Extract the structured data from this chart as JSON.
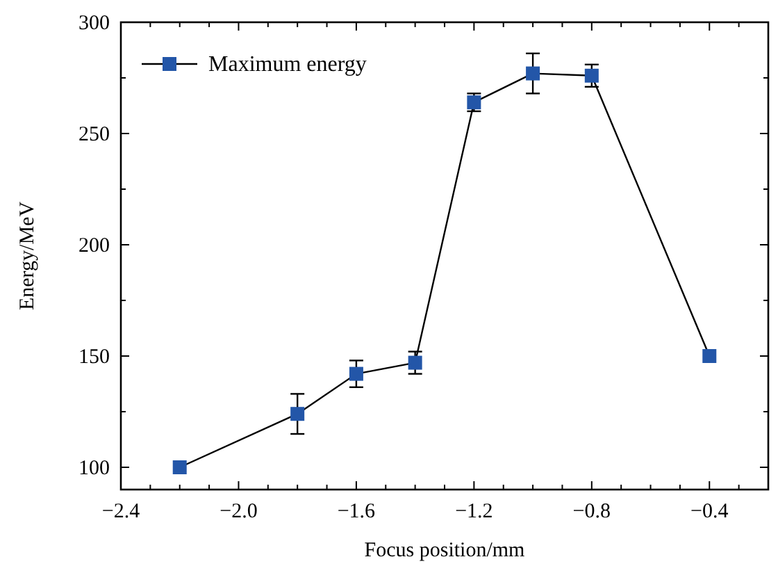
{
  "chart_data": {
    "type": "line",
    "xlabel": "Focus position/mm",
    "ylabel": "Energy/MeV",
    "x": [
      -2.2,
      -1.8,
      -1.6,
      -1.4,
      -1.2,
      -1.0,
      -0.8,
      -0.4
    ],
    "series": [
      {
        "name": "Maximum energy",
        "color": "#2356a8",
        "values": [
          100,
          124,
          142,
          147,
          264,
          277,
          276,
          150
        ],
        "errors": [
          null,
          9,
          6,
          5,
          4,
          9,
          5,
          null
        ]
      }
    ],
    "xlim": [
      -2.4,
      -0.2
    ],
    "xticks": [
      -2.4,
      {
        "value": -2.3,
        "label": null
      },
      {
        "value": -2.2,
        "label": null
      },
      {
        "value": -2.1,
        "label": null
      },
      {
        "value": -2.0,
        "label": "−2.0"
      },
      {
        "value": -1.9,
        "label": null
      },
      {
        "value": -1.8,
        "label": null
      },
      {
        "value": -1.7,
        "label": null
      },
      -1.6,
      {
        "value": -1.5,
        "label": null
      },
      {
        "value": -1.4,
        "label": null
      },
      {
        "value": -1.3,
        "label": null
      },
      -1.2,
      {
        "value": -1.1,
        "label": null
      },
      {
        "value": -1.0,
        "label": null
      },
      {
        "value": -0.9,
        "label": null
      },
      -0.8,
      {
        "value": -0.7,
        "label": null
      },
      {
        "value": -0.6,
        "label": null
      },
      {
        "value": -0.5,
        "label": null
      },
      -0.4,
      {
        "value": -0.3,
        "label": null
      }
    ],
    "ylim": [
      90,
      300
    ],
    "yticks": [
      100,
      {
        "value": 125,
        "label": null
      },
      150,
      {
        "value": 175,
        "label": null
      },
      200,
      {
        "value": 225,
        "label": null
      },
      250,
      {
        "value": 275,
        "label": null
      },
      300
    ],
    "marker": "square",
    "line_style": "solid",
    "legend": "top left",
    "grid": false
  }
}
